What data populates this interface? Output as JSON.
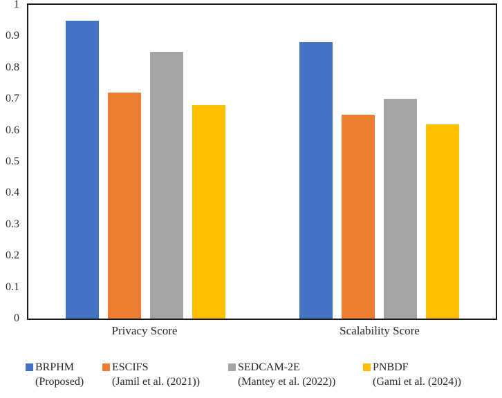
{
  "chart_data": {
    "type": "bar",
    "title": "",
    "xlabel": "",
    "ylabel": "",
    "grid": false,
    "plot_border_color": "#1a1a1a",
    "background_color": "#ffffff",
    "text_color": "#262626",
    "categories": [
      "Privacy Score",
      "Scalability Score"
    ],
    "series": [
      {
        "name": "BRPHM",
        "citation": "(Proposed)",
        "color": "#4472C4",
        "values": [
          0.95,
          0.88
        ]
      },
      {
        "name": "ESCIFS",
        "citation": "(Jamil et al. (2021))",
        "color": "#ED7D31",
        "values": [
          0.72,
          0.65
        ]
      },
      {
        "name": "SEDCAM-2E",
        "citation": "(Mantey et al. (2022))",
        "color": "#A5A5A5",
        "values": [
          0.85,
          0.7
        ]
      },
      {
        "name": "PNBDF",
        "citation": "(Gami et al. (2024))",
        "color": "#FFC000",
        "values": [
          0.68,
          0.62
        ]
      }
    ],
    "ylim": [
      0,
      1
    ],
    "ytick_labels": [
      "0",
      "0.1",
      "0.2",
      "0.3",
      "0.4",
      "0.5",
      "0.6",
      "0.7",
      "0.8",
      "0.9",
      "1"
    ],
    "legend_position": "bottom"
  }
}
